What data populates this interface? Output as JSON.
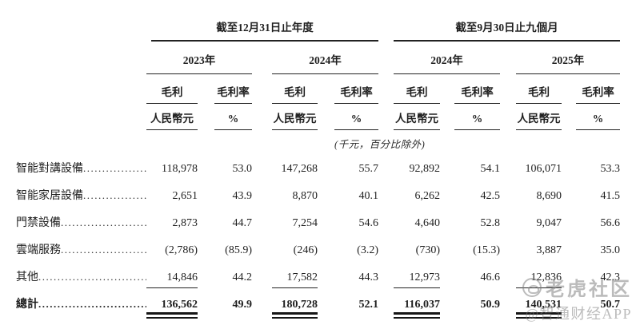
{
  "table": {
    "groups": [
      {
        "period": "截至12月31日止年度",
        "years": [
          "2023年",
          "2024年"
        ]
      },
      {
        "period": "截至9月30日止九個月",
        "years": [
          "2024年",
          "2025年"
        ]
      }
    ],
    "subheaders": {
      "profit": "毛利",
      "margin": "毛利率",
      "unit_amount": "人民幣元",
      "unit_percent": "%"
    },
    "unit_note": "(千元，百分比除外)",
    "rows": [
      {
        "label": "智能對講設備",
        "values": [
          "118,978",
          "53.0",
          "147,268",
          "55.7",
          "92,892",
          "54.1",
          "106,071",
          "53.3"
        ]
      },
      {
        "label": "智能家居設備",
        "values": [
          "2,651",
          "43.9",
          "8,870",
          "40.1",
          "6,262",
          "42.5",
          "8,690",
          "41.5"
        ]
      },
      {
        "label": "門禁設備",
        "values": [
          "2,873",
          "44.7",
          "7,254",
          "54.6",
          "4,640",
          "52.8",
          "9,047",
          "56.6"
        ]
      },
      {
        "label": "雲端服務",
        "values": [
          "(2,786)",
          "(85.9)",
          "(246)",
          "(3.2)",
          "(730)",
          "(15.3)",
          "3,887",
          "35.0"
        ]
      },
      {
        "label": "其他",
        "values": [
          "14,846",
          "44.2",
          "17,582",
          "44.3",
          "12,973",
          "46.6",
          "12,836",
          "42.3"
        ]
      }
    ],
    "total": {
      "label": "總計",
      "values": [
        "136,562",
        "49.9",
        "180,728",
        "52.1",
        "116,037",
        "50.9",
        "140,531",
        "50.7"
      ]
    }
  },
  "watermark": {
    "brand": "老虎社区",
    "source": "@智通财经APP"
  },
  "colors": {
    "text": "#1f1f1f",
    "rule": "#222222",
    "watermark": "#7d7d7d"
  }
}
